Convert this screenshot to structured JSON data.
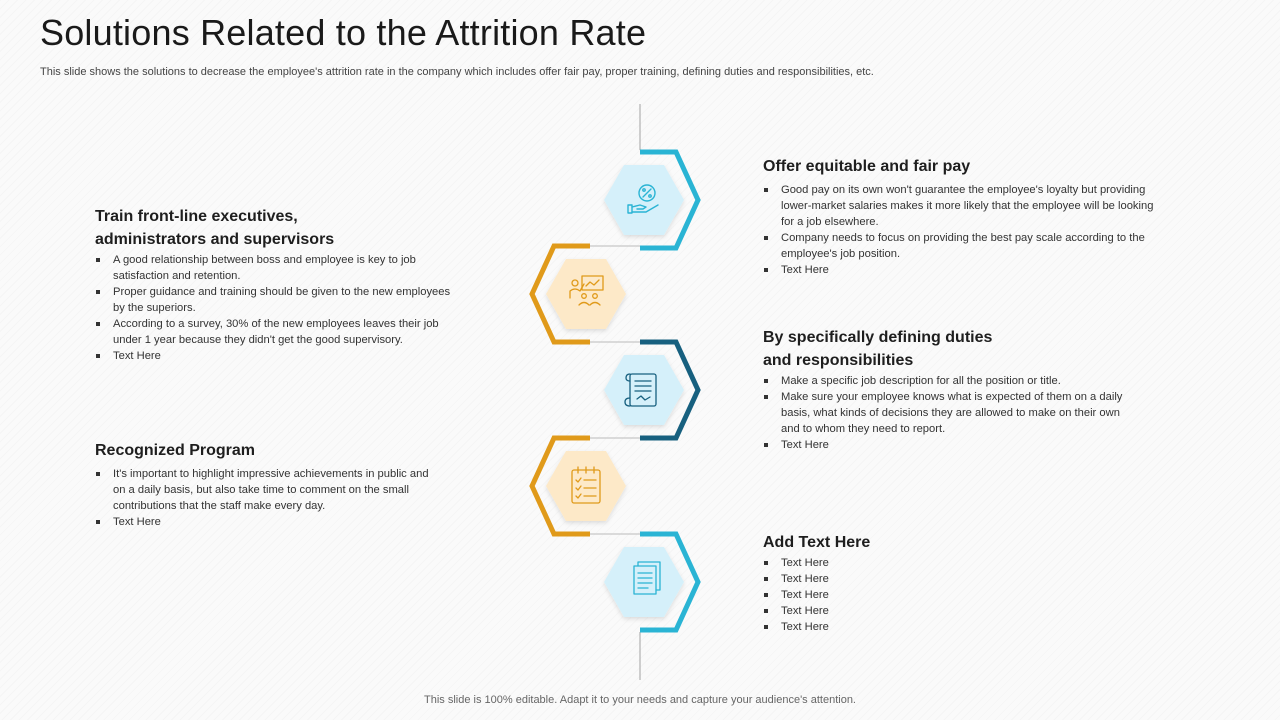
{
  "header": {
    "title": "Solutions Related to the Attrition Rate",
    "subtitle": "This slide shows the solutions to decrease the employee's attrition rate in the company which includes offer fair pay, proper training, defining duties and responsibilities, etc."
  },
  "colors": {
    "cyan": "#2ab4d4",
    "orange": "#e09a1a",
    "navy": "#17607f",
    "hex_blue_fill": "#d5f0fa",
    "hex_orange_fill": "#fde9c8",
    "spine": "#bfbfbf"
  },
  "icons": [
    {
      "name": "percent-hand-icon",
      "color": "#2ab4d4"
    },
    {
      "name": "training-board-icon",
      "color": "#e09a1a"
    },
    {
      "name": "scroll-document-icon",
      "color": "#17607f"
    },
    {
      "name": "checklist-icon",
      "color": "#e09a1a"
    },
    {
      "name": "documents-icon",
      "color": "#2ab4d4"
    }
  ],
  "left_blocks": [
    {
      "heading_lines": [
        "Train front-line executives,",
        "administrators and supervisors"
      ],
      "bullets": [
        [
          "A good relationship between boss and employee  is key to job",
          "satisfaction and retention."
        ],
        [
          "Proper guidance and training should be given to the new employees",
          "by the superiors."
        ],
        [
          "According to a survey, 30% of the new employees leaves their job",
          "under 1 year because they didn't get  the good supervisory."
        ],
        [
          "Text Here"
        ]
      ]
    },
    {
      "heading_lines": [
        "Recognized Program"
      ],
      "bullets": [
        [
          "It's important to highlight impressive achievements in public and",
          "on a daily basis, but also take time to comment  on the small",
          "contributions that the staff make every day."
        ],
        [
          "Text Here"
        ]
      ]
    }
  ],
  "right_blocks": [
    {
      "heading_lines": [
        "Offer equitable and fair pay"
      ],
      "bullets": [
        [
          "Good pay on its own won't guarantee the employee's  loyalty but providing",
          "lower-market salaries makes it more likely that the employee  will be looking",
          "for a job elsewhere."
        ],
        [
          "Company needs to focus on providing the best pay scale according to the",
          "employee's job position."
        ],
        [
          "Text Here"
        ]
      ]
    },
    {
      "heading_lines": [
        "By specifically defining duties",
        "and responsibilities"
      ],
      "bullets": [
        [
          "Make a specific job description for all the position or title."
        ],
        [
          "Make sure your employee  knows what is expected of them  on a daily",
          "basis, what kinds of decisions they are allowed to make on their own",
          "and to whom they need to report."
        ],
        [
          "Text Here"
        ]
      ]
    },
    {
      "heading_lines": [
        "Add Text Here"
      ],
      "bullets": [
        [
          "Text Here"
        ],
        [
          "Text Here"
        ],
        [
          "Text Here"
        ],
        [
          "Text Here"
        ],
        [
          "Text Here"
        ]
      ]
    }
  ],
  "footer": "This slide is 100% editable. Adapt it to your needs and capture your audience's attention."
}
